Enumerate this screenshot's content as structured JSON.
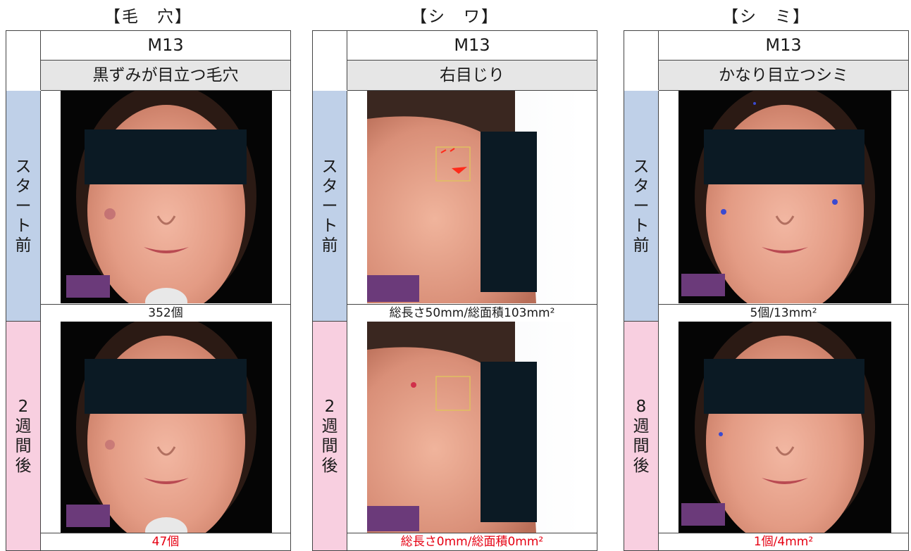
{
  "panels": [
    {
      "heading": "【毛　穴】",
      "code": "M13",
      "subject": "黒ずみが目立つ毛穴",
      "before_label": "スタート前",
      "after_label": "2週間後",
      "before_result": "352個",
      "after_result": "47個"
    },
    {
      "heading": "【シ　ワ】",
      "code": "M13",
      "subject": "右目じり",
      "before_label": "スタート前",
      "after_label": "2週間後",
      "before_result": "総長さ50mm/総面積103mm²",
      "after_result": "総長さ0mm/総面積0mm²"
    },
    {
      "heading": "【シ　ミ】",
      "code": "M13",
      "subject": "かなり目立つシミ",
      "before_label": "スタート前",
      "after_label": "8週間後",
      "before_result": "5個/13mm²",
      "after_result": "1個/4mm²"
    }
  ],
  "colors": {
    "before_band": "#bfd0e8",
    "after_band": "#f8cfe0",
    "after_result_text": "#e60012",
    "subject_band": "#e6e6e6",
    "censor_bar": "#0b1a24"
  }
}
